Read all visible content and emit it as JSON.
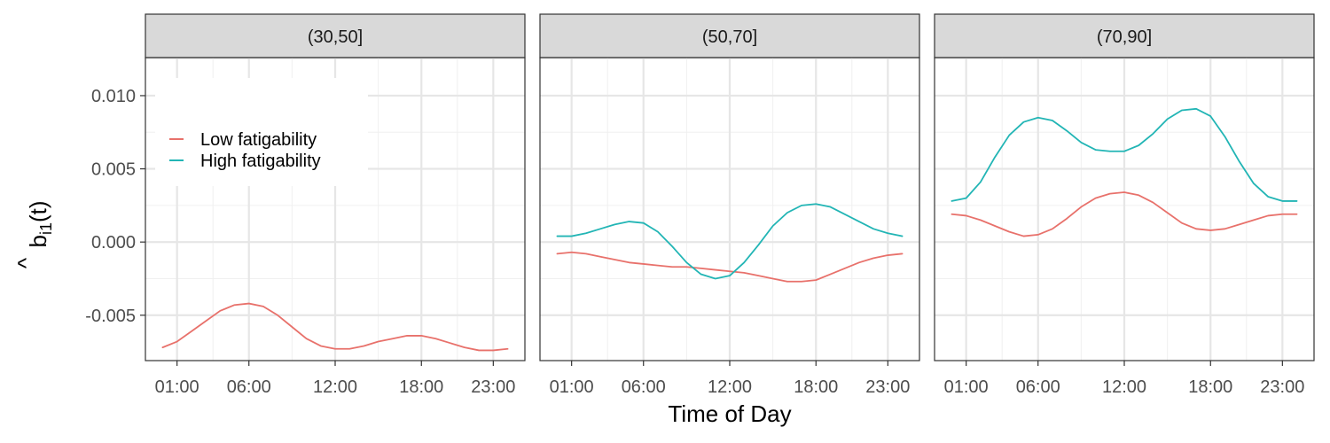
{
  "chart_data": {
    "type": "line",
    "xlabel": "Time of Day",
    "ylabel_main": "b",
    "ylabel_hat": "^",
    "ylabel_sub": "i1",
    "ylabel_arg": "(t)",
    "x_ticks": [
      {
        "hour": 1,
        "label": "01:00"
      },
      {
        "hour": 6,
        "label": "06:00"
      },
      {
        "hour": 12,
        "label": "12:00"
      },
      {
        "hour": 18,
        "label": "18:00"
      },
      {
        "hour": 23,
        "label": "23:00"
      }
    ],
    "xlim": [
      -1.2,
      25.2
    ],
    "y_ticks": [
      {
        "value": 0.01,
        "label": "0.010"
      },
      {
        "value": 0.005,
        "label": "0.005"
      },
      {
        "value": 0.0,
        "label": "0.000"
      },
      {
        "value": -0.005,
        "label": "-0.005"
      }
    ],
    "ylim": [
      -0.0081,
      0.0126
    ],
    "grid": true,
    "legend": {
      "position": "inside top-left of first panel",
      "entries": [
        {
          "key": "low",
          "label": "Low fatigability",
          "color": "#E8716B"
        },
        {
          "key": "high",
          "label": "High fatigability",
          "color": "#22B5B5"
        }
      ]
    },
    "panels": [
      {
        "label": "(30,50]",
        "series": [
          {
            "key": "low",
            "x": [
              0,
              1,
              2,
              3,
              4,
              5,
              6,
              7,
              8,
              9,
              10,
              11,
              12,
              13,
              14,
              15,
              16,
              17,
              18,
              19,
              20,
              21,
              22,
              23,
              24
            ],
            "y": [
              -0.0072,
              -0.0068,
              -0.0061,
              -0.0054,
              -0.0047,
              -0.0043,
              -0.0042,
              -0.0044,
              -0.005,
              -0.0058,
              -0.0066,
              -0.0071,
              -0.0073,
              -0.0073,
              -0.0071,
              -0.0068,
              -0.0066,
              -0.0064,
              -0.0064,
              -0.0066,
              -0.0069,
              -0.0072,
              -0.0074,
              -0.0074,
              -0.0073
            ]
          }
        ]
      },
      {
        "label": "(50,70]",
        "series": [
          {
            "key": "low",
            "x": [
              0,
              1,
              2,
              3,
              4,
              5,
              6,
              7,
              8,
              9,
              10,
              11,
              12,
              13,
              14,
              15,
              16,
              17,
              18,
              19,
              20,
              21,
              22,
              23,
              24
            ],
            "y": [
              -0.0008,
              -0.0007,
              -0.0008,
              -0.001,
              -0.0012,
              -0.0014,
              -0.0015,
              -0.0016,
              -0.0017,
              -0.0017,
              -0.0018,
              -0.0019,
              -0.002,
              -0.0021,
              -0.0023,
              -0.0025,
              -0.0027,
              -0.0027,
              -0.0026,
              -0.0022,
              -0.0018,
              -0.0014,
              -0.0011,
              -0.0009,
              -0.0008
            ]
          },
          {
            "key": "high",
            "x": [
              0,
              1,
              2,
              3,
              4,
              5,
              6,
              7,
              8,
              9,
              10,
              11,
              12,
              13,
              14,
              15,
              16,
              17,
              18,
              19,
              20,
              21,
              22,
              23,
              24
            ],
            "y": [
              0.0004,
              0.0004,
              0.0006,
              0.0009,
              0.0012,
              0.0014,
              0.0013,
              0.0007,
              -0.0003,
              -0.0014,
              -0.0022,
              -0.0025,
              -0.0023,
              -0.0014,
              -0.0002,
              0.0011,
              0.002,
              0.0025,
              0.0026,
              0.0024,
              0.0019,
              0.0014,
              0.0009,
              0.0006,
              0.0004
            ]
          }
        ]
      },
      {
        "label": "(70,90]",
        "series": [
          {
            "key": "low",
            "x": [
              0,
              1,
              2,
              3,
              4,
              5,
              6,
              7,
              8,
              9,
              10,
              11,
              12,
              13,
              14,
              15,
              16,
              17,
              18,
              19,
              20,
              21,
              22,
              23,
              24
            ],
            "y": [
              0.0019,
              0.0018,
              0.0015,
              0.0011,
              0.0007,
              0.0004,
              0.0005,
              0.0009,
              0.0016,
              0.0024,
              0.003,
              0.0033,
              0.0034,
              0.0032,
              0.0027,
              0.002,
              0.0013,
              0.0009,
              0.0008,
              0.0009,
              0.0012,
              0.0015,
              0.0018,
              0.0019,
              0.0019
            ]
          },
          {
            "key": "high",
            "x": [
              0,
              1,
              2,
              3,
              4,
              5,
              6,
              7,
              8,
              9,
              10,
              11,
              12,
              13,
              14,
              15,
              16,
              17,
              18,
              19,
              20,
              21,
              22,
              23,
              24
            ],
            "y": [
              0.0028,
              0.003,
              0.0041,
              0.0058,
              0.0073,
              0.0082,
              0.0085,
              0.0083,
              0.0076,
              0.0068,
              0.0063,
              0.0062,
              0.0062,
              0.0066,
              0.0074,
              0.0084,
              0.009,
              0.0091,
              0.0086,
              0.0072,
              0.0055,
              0.004,
              0.0031,
              0.0028,
              0.0028
            ]
          }
        ]
      }
    ]
  }
}
